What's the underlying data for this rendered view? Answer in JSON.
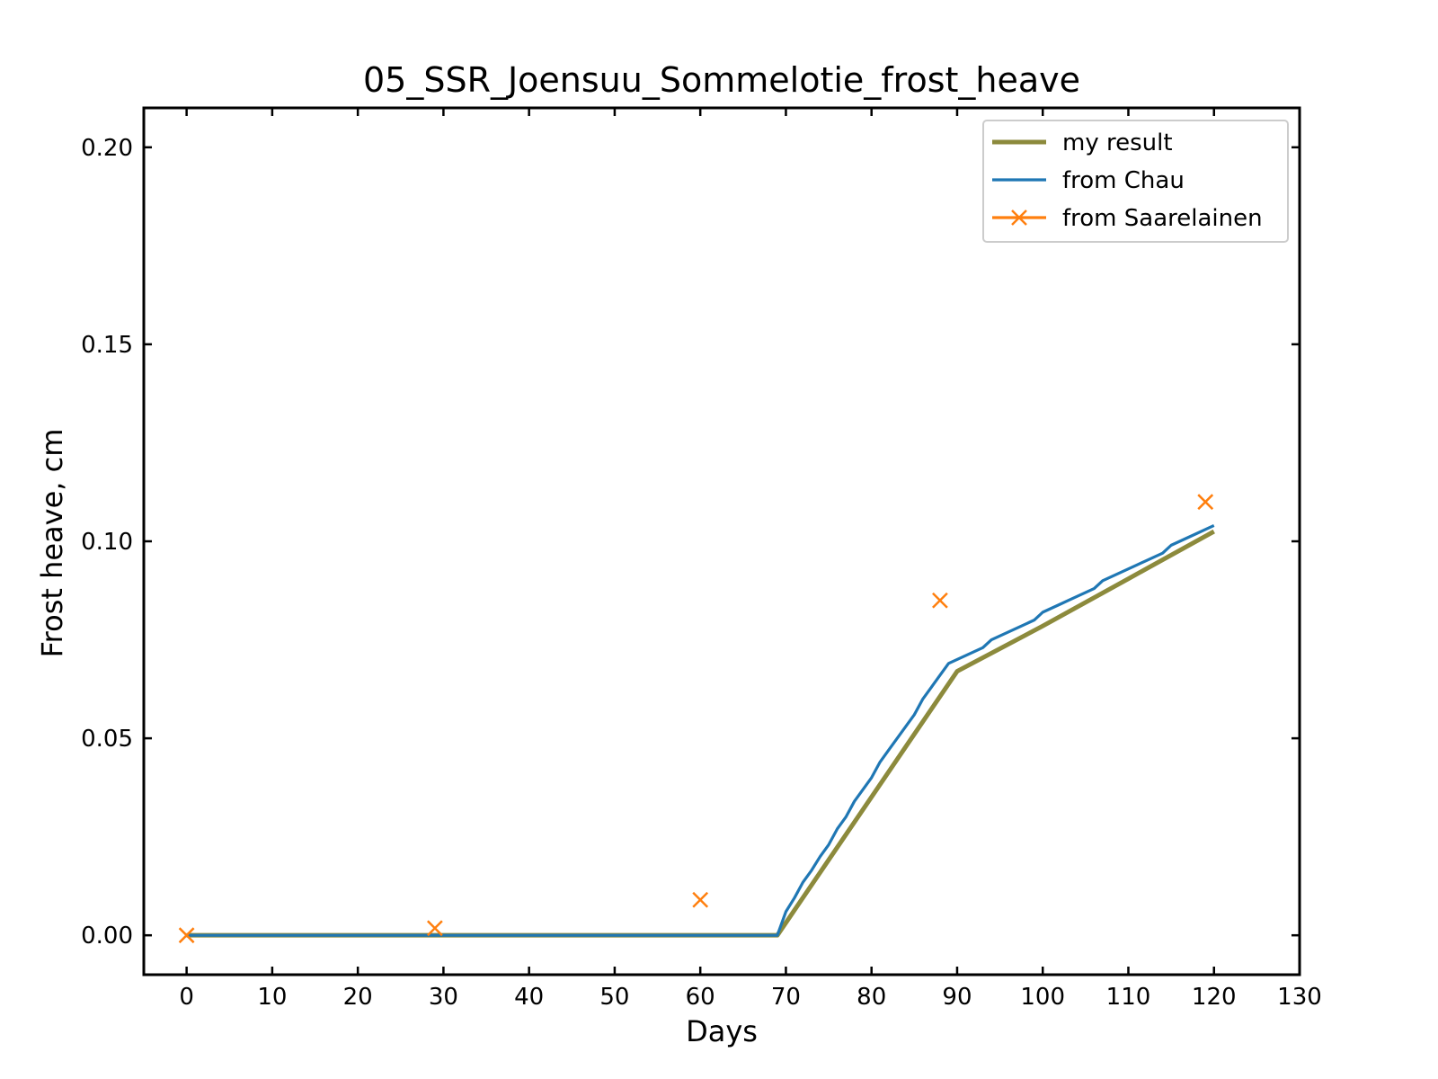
{
  "chart_data": {
    "type": "line",
    "title": "05_SSR_Joensuu_Sommelotie_frost_heave",
    "xlabel": "Days",
    "ylabel": "Frost heave, cm",
    "xlim": [
      -5,
      130
    ],
    "ylim": [
      -0.01,
      0.21
    ],
    "xticks": [
      0,
      10,
      20,
      30,
      40,
      50,
      60,
      70,
      80,
      90,
      100,
      110,
      120,
      130
    ],
    "yticks": [
      0.0,
      0.05,
      0.1,
      0.15,
      0.2
    ],
    "ytick_labels": [
      "0.00",
      "0.05",
      "0.10",
      "0.15",
      "0.20"
    ],
    "grid": false,
    "legend_position": "top-right",
    "series": [
      {
        "name": "my result",
        "color": "#8c8a3c",
        "style": "line",
        "x": [
          0,
          69,
          90,
          100,
          110,
          120
        ],
        "y": [
          0.0,
          0.0,
          0.067,
          0.0785,
          0.0905,
          0.1025
        ]
      },
      {
        "name": "from Chau",
        "color": "#1f77b4",
        "style": "line",
        "x": [
          0,
          68,
          69,
          70,
          71,
          72,
          73,
          74,
          75,
          76,
          77,
          78,
          79,
          80,
          81,
          82,
          83,
          84,
          85,
          86,
          87,
          88,
          89,
          90,
          91,
          92,
          93,
          94,
          95,
          96,
          97,
          98,
          99,
          100,
          101,
          102,
          103,
          104,
          105,
          106,
          107,
          108,
          109,
          110,
          111,
          112,
          113,
          114,
          115,
          116,
          117,
          118,
          119,
          120
        ],
        "y": [
          0.0,
          0.0,
          0.0,
          0.006,
          0.0095,
          0.0135,
          0.0165,
          0.02,
          0.023,
          0.027,
          0.03,
          0.034,
          0.037,
          0.04,
          0.044,
          0.047,
          0.05,
          0.053,
          0.056,
          0.06,
          0.063,
          0.066,
          0.069,
          0.07,
          0.071,
          0.072,
          0.073,
          0.075,
          0.076,
          0.077,
          0.078,
          0.079,
          0.08,
          0.082,
          0.083,
          0.084,
          0.085,
          0.086,
          0.087,
          0.088,
          0.09,
          0.091,
          0.092,
          0.093,
          0.094,
          0.095,
          0.096,
          0.097,
          0.099,
          0.1,
          0.101,
          0.102,
          0.103,
          0.104
        ]
      },
      {
        "name": "from Saarelainen",
        "color": "#ff7f0e",
        "style": "marker-x",
        "x": [
          0,
          29,
          60,
          88,
          119
        ],
        "y": [
          0.0,
          0.0018,
          0.009,
          0.085,
          0.11
        ]
      }
    ]
  }
}
